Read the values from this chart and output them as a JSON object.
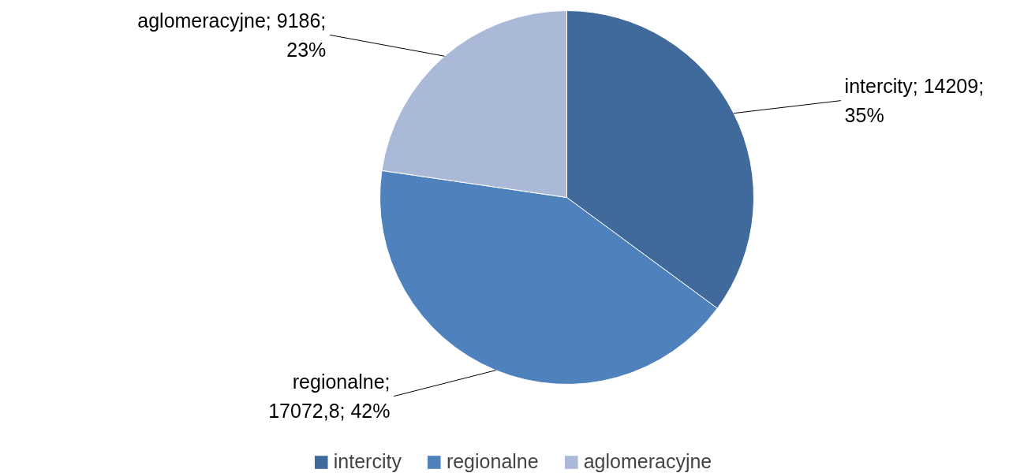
{
  "chart_data": {
    "type": "pie",
    "categories": [
      "intercity",
      "regionalne",
      "aglomeracyjne"
    ],
    "values": [
      14209,
      17072.8,
      9186
    ],
    "colors": [
      "#416a9c",
      "#4f81bd",
      "#aab9d7"
    ],
    "value_labels": [
      "intercity; 14209;\n35%",
      "regionalne;\n17072,8; 42%",
      "aglomeracyjne; 9186;\n23%"
    ],
    "legend": "bottom"
  }
}
